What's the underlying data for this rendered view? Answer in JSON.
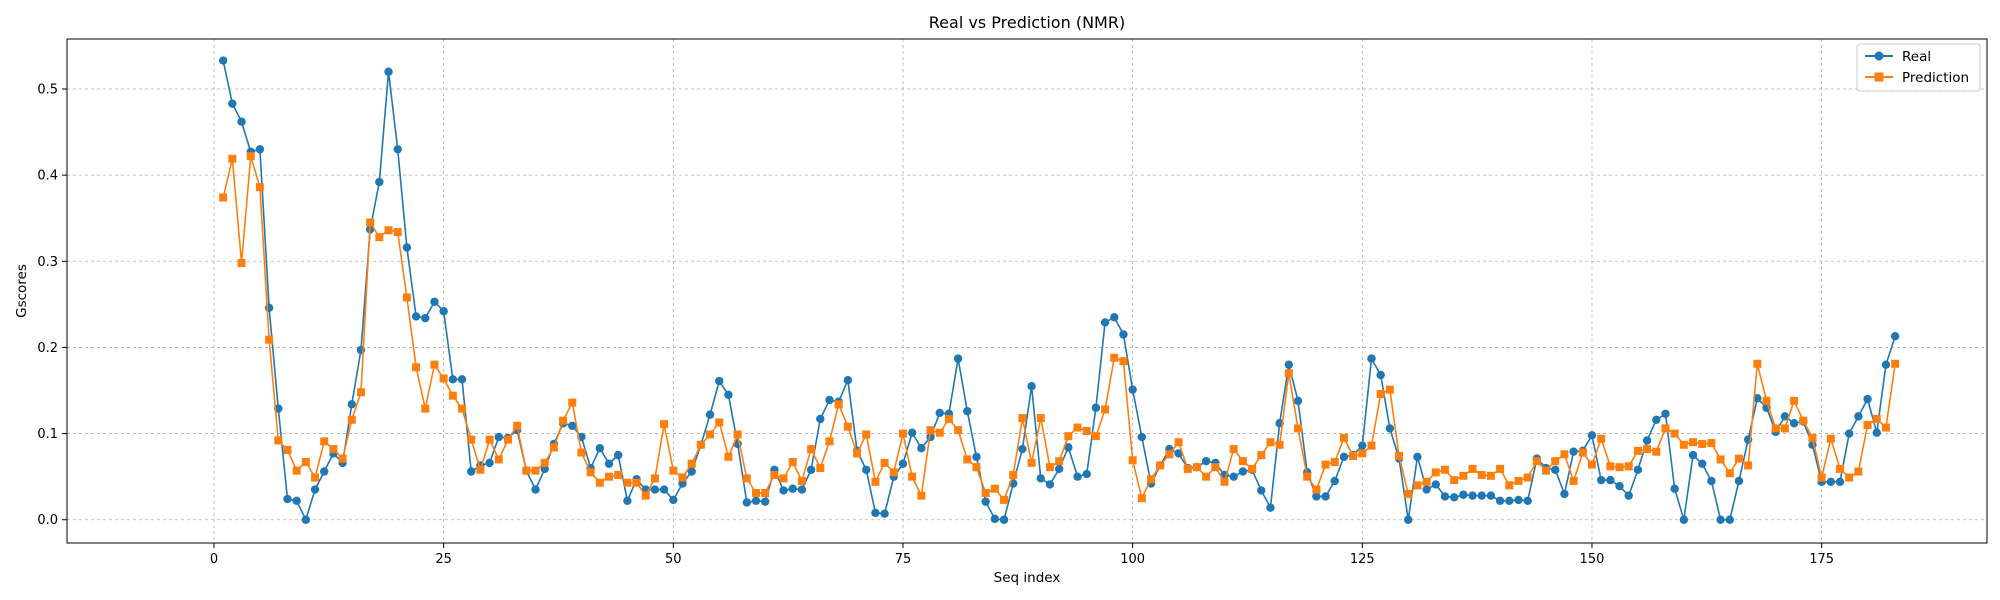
{
  "chart_data": {
    "type": "line",
    "title": "Real vs Prediction (NMR)",
    "xlabel": "Seq index",
    "ylabel": "Gscores",
    "xlim": [
      -16,
      193
    ],
    "ylim": [
      -0.027,
      0.558
    ],
    "xticks": [
      0,
      25,
      50,
      75,
      100,
      125,
      150,
      175
    ],
    "yticks": [
      0.0,
      0.1,
      0.2,
      0.3,
      0.4,
      0.5
    ],
    "ytick_labels": [
      "0.0",
      "0.1",
      "0.2",
      "0.3",
      "0.4",
      "0.5"
    ],
    "grid": true,
    "legend_position": "top-right",
    "series": [
      {
        "name": "Real",
        "color": "#1f77b4",
        "marker": "circle",
        "x_start": 1,
        "values": [
          0.533,
          0.483,
          0.462,
          0.427,
          0.43,
          0.246,
          0.129,
          0.024,
          0.022,
          0.0,
          0.035,
          0.056,
          0.077,
          0.066,
          0.134,
          0.197,
          0.337,
          0.392,
          0.52,
          0.43,
          0.316,
          0.236,
          0.234,
          0.253,
          0.242,
          0.163,
          0.163,
          0.056,
          0.063,
          0.066,
          0.096,
          0.095,
          0.104,
          0.057,
          0.035,
          0.059,
          0.088,
          0.112,
          0.109,
          0.096,
          0.06,
          0.083,
          0.065,
          0.075,
          0.022,
          0.047,
          0.035,
          0.035,
          0.035,
          0.023,
          0.042,
          0.056,
          0.087,
          0.122,
          0.161,
          0.145,
          0.088,
          0.02,
          0.022,
          0.021,
          0.058,
          0.034,
          0.036,
          0.035,
          0.058,
          0.117,
          0.139,
          0.137,
          0.162,
          0.08,
          0.058,
          0.008,
          0.007,
          0.05,
          0.065,
          0.101,
          0.083,
          0.096,
          0.124,
          0.123,
          0.187,
          0.126,
          0.073,
          0.021,
          0.001,
          0.0,
          0.042,
          0.082,
          0.155,
          0.048,
          0.041,
          0.059,
          0.084,
          0.05,
          0.053,
          0.13,
          0.229,
          0.235,
          0.215,
          0.151,
          0.096,
          0.042,
          0.063,
          0.082,
          0.077,
          0.06,
          0.061,
          0.068,
          0.066,
          0.052,
          0.05,
          0.056,
          0.058,
          0.034,
          0.014,
          0.112,
          0.18,
          0.138,
          0.055,
          0.027,
          0.027,
          0.045,
          0.073,
          0.075,
          0.086,
          0.187,
          0.168,
          0.106,
          0.071,
          0.0,
          0.073,
          0.035,
          0.041,
          0.027,
          0.026,
          0.029,
          0.028,
          0.028,
          0.028,
          0.022,
          0.022,
          0.023,
          0.022,
          0.071,
          0.06,
          0.058,
          0.03,
          0.079,
          0.08,
          0.098,
          0.046,
          0.046,
          0.039,
          0.028,
          0.058,
          0.092,
          0.116,
          0.123,
          0.036,
          0.0,
          0.075,
          0.065,
          0.045,
          0.0,
          0.0,
          0.045,
          0.093,
          0.141,
          0.13,
          0.102,
          0.12,
          0.112,
          0.114,
          0.087,
          0.044,
          0.044,
          0.044,
          0.1,
          0.12,
          0.14,
          0.101,
          0.18,
          0.213
        ]
      },
      {
        "name": "Prediction",
        "color": "#ff7f0e",
        "marker": "square",
        "x_start": 1,
        "values": [
          0.374,
          0.419,
          0.298,
          0.422,
          0.386,
          0.209,
          0.092,
          0.081,
          0.057,
          0.067,
          0.049,
          0.091,
          0.082,
          0.071,
          0.116,
          0.148,
          0.345,
          0.328,
          0.336,
          0.334,
          0.258,
          0.177,
          0.129,
          0.18,
          0.164,
          0.144,
          0.129,
          0.093,
          0.058,
          0.093,
          0.07,
          0.093,
          0.109,
          0.057,
          0.057,
          0.066,
          0.084,
          0.115,
          0.136,
          0.078,
          0.055,
          0.043,
          0.05,
          0.052,
          0.043,
          0.043,
          0.028,
          0.048,
          0.111,
          0.057,
          0.049,
          0.065,
          0.087,
          0.099,
          0.113,
          0.073,
          0.099,
          0.048,
          0.031,
          0.031,
          0.052,
          0.048,
          0.067,
          0.045,
          0.082,
          0.06,
          0.091,
          0.134,
          0.108,
          0.077,
          0.099,
          0.044,
          0.066,
          0.055,
          0.1,
          0.05,
          0.028,
          0.104,
          0.101,
          0.117,
          0.104,
          0.07,
          0.061,
          0.031,
          0.036,
          0.023,
          0.052,
          0.118,
          0.066,
          0.118,
          0.061,
          0.068,
          0.097,
          0.107,
          0.103,
          0.097,
          0.128,
          0.188,
          0.184,
          0.069,
          0.025,
          0.047,
          0.063,
          0.076,
          0.09,
          0.059,
          0.061,
          0.05,
          0.061,
          0.044,
          0.082,
          0.068,
          0.059,
          0.075,
          0.09,
          0.087,
          0.17,
          0.106,
          0.05,
          0.035,
          0.064,
          0.067,
          0.095,
          0.074,
          0.077,
          0.086,
          0.146,
          0.151,
          0.074,
          0.03,
          0.04,
          0.044,
          0.055,
          0.058,
          0.046,
          0.051,
          0.059,
          0.052,
          0.051,
          0.059,
          0.04,
          0.045,
          0.049,
          0.068,
          0.057,
          0.068,
          0.076,
          0.045,
          0.078,
          0.064,
          0.094,
          0.062,
          0.061,
          0.062,
          0.08,
          0.082,
          0.079,
          0.106,
          0.1,
          0.087,
          0.09,
          0.088,
          0.089,
          0.07,
          0.054,
          0.071,
          0.063,
          0.181,
          0.138,
          0.106,
          0.106,
          0.138,
          0.115,
          0.095,
          0.049,
          0.094,
          0.059,
          0.049,
          0.056,
          0.11,
          0.117,
          0.107,
          0.181
        ]
      }
    ]
  }
}
